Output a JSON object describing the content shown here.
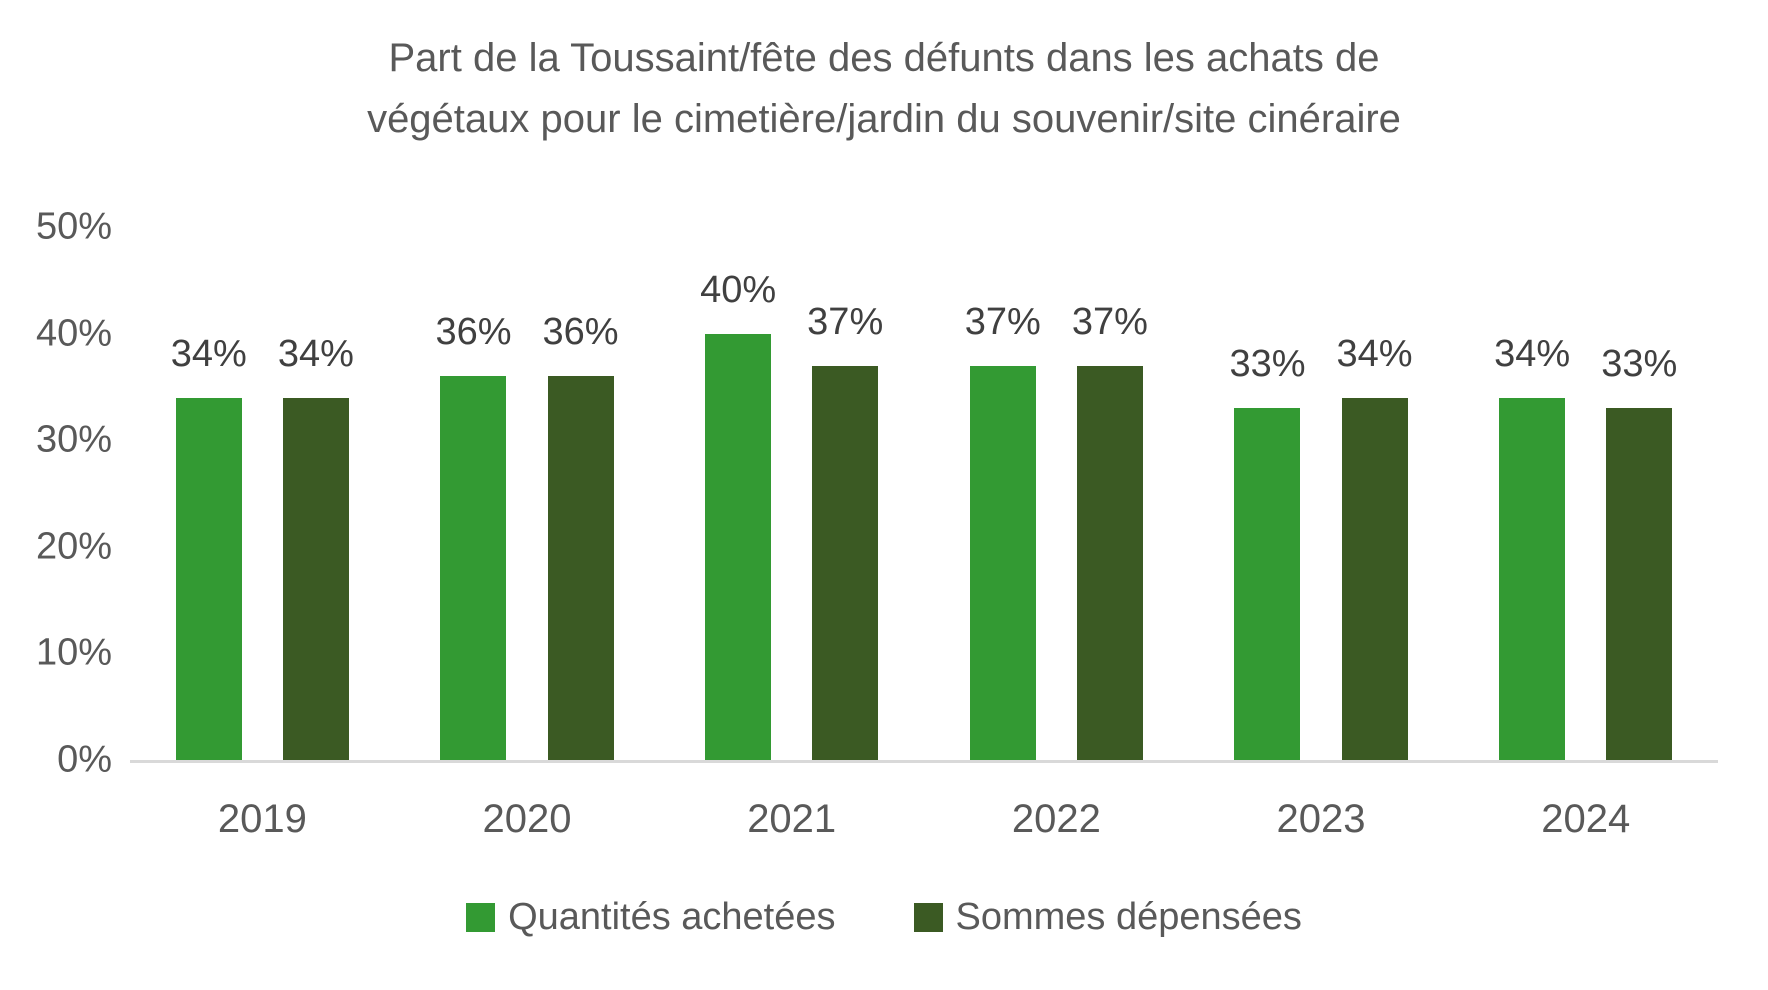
{
  "chart_data": {
    "type": "bar",
    "title": "Part de la Toussaint/fête des défunts dans les achats de végétaux pour le cimetière/jardin du souvenir/site cinéraire",
    "title_lines": [
      "Part de la Toussaint/fête des défunts dans les achats de",
      "végétaux pour le cimetière/jardin du souvenir/site cinéraire"
    ],
    "categories": [
      "2019",
      "2020",
      "2021",
      "2022",
      "2023",
      "2024"
    ],
    "series": [
      {
        "name": "Quantités achetées",
        "color": "#339a33",
        "values": [
          34,
          36,
          40,
          37,
          33,
          34
        ]
      },
      {
        "name": "Sommes dépensées",
        "color": "#3b5a23",
        "values": [
          34,
          36,
          37,
          37,
          34,
          33
        ]
      }
    ],
    "data_label_format": "{v}%",
    "y_axis": {
      "min": 0,
      "max": 50,
      "tick_step": 10,
      "ticks": [
        "0%",
        "10%",
        "20%",
        "30%",
        "40%",
        "50%"
      ]
    },
    "xlabel": "",
    "ylabel": "",
    "grid": false,
    "legend_position": "bottom",
    "colors": {
      "axis_line": "#d9d9d9",
      "axis_text": "#595959",
      "title_text": "#595959",
      "data_label_text": "#404040",
      "background": "#ffffff"
    }
  }
}
